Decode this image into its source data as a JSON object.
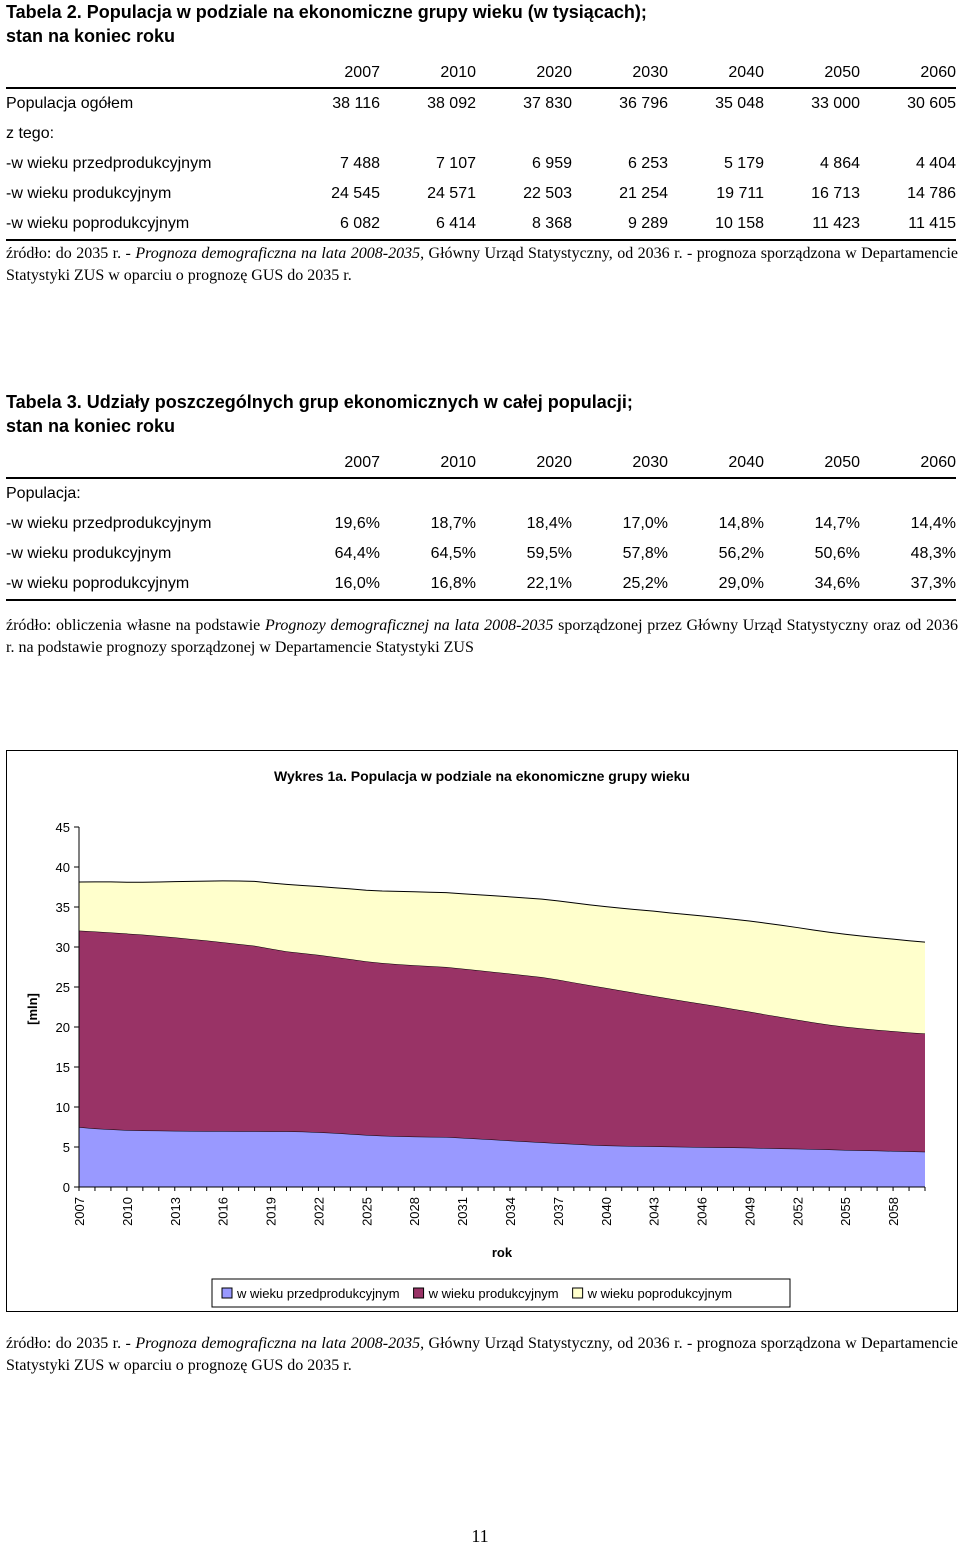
{
  "table2": {
    "caption_line1": "Tabela 2. Populacja w podziale na ekonomiczne grupy wieku (w tysiącach);",
    "caption_line2": "stan na koniec roku",
    "years": [
      "2007",
      "2010",
      "2020",
      "2030",
      "2040",
      "2050",
      "2060"
    ],
    "rows": [
      {
        "label": "Populacja ogółem",
        "values": [
          "38 116",
          "38 092",
          "37 830",
          "36 796",
          "35 048",
          "33 000",
          "30 605"
        ]
      },
      {
        "label": "z tego:",
        "values": [
          "",
          "",
          "",
          "",
          "",
          "",
          ""
        ]
      },
      {
        "label": "-w wieku przedprodukcyjnym",
        "values": [
          "7 488",
          "7 107",
          "6 959",
          "6 253",
          "5 179",
          "4 864",
          "4 404"
        ]
      },
      {
        "label": "-w wieku produkcyjnym",
        "values": [
          "24 545",
          "24 571",
          "22 503",
          "21 254",
          "19 711",
          "16 713",
          "14 786"
        ]
      },
      {
        "label": "-w wieku poprodukcyjnym",
        "values": [
          "6 082",
          "6 414",
          "8 368",
          "9 289",
          "10 158",
          "11 423",
          "11 415"
        ]
      }
    ],
    "source_a": "źródło: do 2035 r. - ",
    "source_b": "Prognoza demograficzna na lata 2008-2035",
    "source_c": ", Główny Urząd Statystyczny, od 2036 r. - prognoza sporządzona w Departamencie Statystyki ZUS w oparciu o prognozę GUS do 2035 r."
  },
  "table3": {
    "caption_line1": "Tabela 3. Udziały poszczególnych grup ekonomicznych w całej populacji;",
    "caption_line2": "stan na koniec roku",
    "years": [
      "2007",
      "2010",
      "2020",
      "2030",
      "2040",
      "2050",
      "2060"
    ],
    "section_label": "Populacja:",
    "rows": [
      {
        "label": "-w wieku przedprodukcyjnym",
        "values": [
          "19,6%",
          "18,7%",
          "18,4%",
          "17,0%",
          "14,8%",
          "14,7%",
          "14,4%"
        ]
      },
      {
        "label": "-w wieku produkcyjnym",
        "values": [
          "64,4%",
          "64,5%",
          "59,5%",
          "57,8%",
          "56,2%",
          "50,6%",
          "48,3%"
        ]
      },
      {
        "label": "-w wieku poprodukcyjnym",
        "values": [
          "16,0%",
          "16,8%",
          "22,1%",
          "25,2%",
          "29,0%",
          "34,6%",
          "37,3%"
        ]
      }
    ],
    "source_a": "źródło: obliczenia własne na podstawie ",
    "source_b": "Prognozy demograficznej na lata 2008-2035",
    "source_c": " sporządzonej przez Główny Urząd Statystyczny oraz od 2036 r. na podstawie prognozy sporządzonej w Departamencie Statystyki ZUS"
  },
  "chart_data": {
    "type": "area",
    "stacked": true,
    "title": "Wykres 1a. Populacja w podziale na ekonomiczne grupy wieku",
    "xlabel": "rok",
    "ylabel": "[mln]",
    "ylim": [
      0,
      45
    ],
    "yticks": [
      0,
      5,
      10,
      15,
      20,
      25,
      30,
      35,
      40,
      45
    ],
    "x": [
      2007,
      2008,
      2009,
      2010,
      2011,
      2012,
      2013,
      2014,
      2015,
      2016,
      2017,
      2018,
      2019,
      2020,
      2021,
      2022,
      2023,
      2024,
      2025,
      2026,
      2027,
      2028,
      2029,
      2030,
      2031,
      2032,
      2033,
      2034,
      2035,
      2036,
      2037,
      2038,
      2039,
      2040,
      2041,
      2042,
      2043,
      2044,
      2045,
      2046,
      2047,
      2048,
      2049,
      2050,
      2051,
      2052,
      2053,
      2054,
      2055,
      2056,
      2057,
      2058,
      2059,
      2060
    ],
    "xticks": [
      "2007",
      "2010",
      "2013",
      "2016",
      "2019",
      "2022",
      "2025",
      "2028",
      "2031",
      "2034",
      "2037",
      "2040",
      "2043",
      "2046",
      "2049",
      "2052",
      "2055",
      "2058"
    ],
    "grid": false,
    "legend_position": "bottom",
    "colors": {
      "pre": "#9999ff",
      "prod": "#993366",
      "post": "#ffffcc",
      "border": "#000000"
    },
    "series": [
      {
        "name": "w wieku przedprodukcyjnym",
        "values": [
          7.49,
          7.32,
          7.2,
          7.11,
          7.07,
          7.04,
          7.02,
          7.0,
          6.99,
          6.98,
          6.97,
          6.97,
          6.96,
          6.96,
          6.92,
          6.85,
          6.75,
          6.63,
          6.5,
          6.4,
          6.35,
          6.3,
          6.27,
          6.25,
          6.14,
          6.03,
          5.92,
          5.8,
          5.69,
          5.58,
          5.47,
          5.37,
          5.27,
          5.18,
          5.14,
          5.11,
          5.08,
          5.05,
          5.02,
          4.99,
          4.96,
          4.93,
          4.9,
          4.86,
          4.82,
          4.78,
          4.73,
          4.68,
          4.63,
          4.58,
          4.54,
          4.5,
          4.45,
          4.4
        ]
      },
      {
        "name": "w wieku produkcyjnym",
        "values": [
          24.55,
          24.62,
          24.62,
          24.57,
          24.47,
          24.34,
          24.18,
          24.0,
          23.82,
          23.62,
          23.4,
          23.18,
          22.84,
          22.5,
          22.31,
          22.16,
          22.0,
          21.86,
          21.7,
          21.6,
          21.5,
          21.42,
          21.34,
          21.25,
          21.15,
          21.06,
          20.96,
          20.87,
          20.77,
          20.65,
          20.45,
          20.2,
          19.95,
          19.71,
          19.4,
          19.1,
          18.8,
          18.5,
          18.2,
          17.92,
          17.63,
          17.32,
          17.02,
          16.71,
          16.42,
          16.13,
          15.85,
          15.6,
          15.4,
          15.25,
          15.1,
          14.98,
          14.87,
          14.79
        ]
      },
      {
        "name": "w wieku poprodukcyjnym",
        "values": [
          6.08,
          6.2,
          6.32,
          6.41,
          6.56,
          6.75,
          6.97,
          7.2,
          7.43,
          7.66,
          7.88,
          8.05,
          8.2,
          8.37,
          8.46,
          8.56,
          8.66,
          8.78,
          8.9,
          9.0,
          9.1,
          9.18,
          9.24,
          9.29,
          9.36,
          9.44,
          9.52,
          9.6,
          9.67,
          9.75,
          9.85,
          9.94,
          10.05,
          10.16,
          10.3,
          10.45,
          10.6,
          10.72,
          10.86,
          10.98,
          11.1,
          11.22,
          11.33,
          11.42,
          11.48,
          11.52,
          11.55,
          11.56,
          11.56,
          11.55,
          11.53,
          11.5,
          11.46,
          11.42
        ]
      }
    ]
  },
  "source3": {
    "source_a": "źródło: do 2035 r. - ",
    "source_b": "Prognoza demograficzna na lata 2008-2035",
    "source_c": ", Główny Urząd Statystyczny, od 2036 r. - prognoza sporządzona w Departamencie Statystyki ZUS w oparciu o prognozę GUS do 2035 r."
  },
  "page_number": "11"
}
